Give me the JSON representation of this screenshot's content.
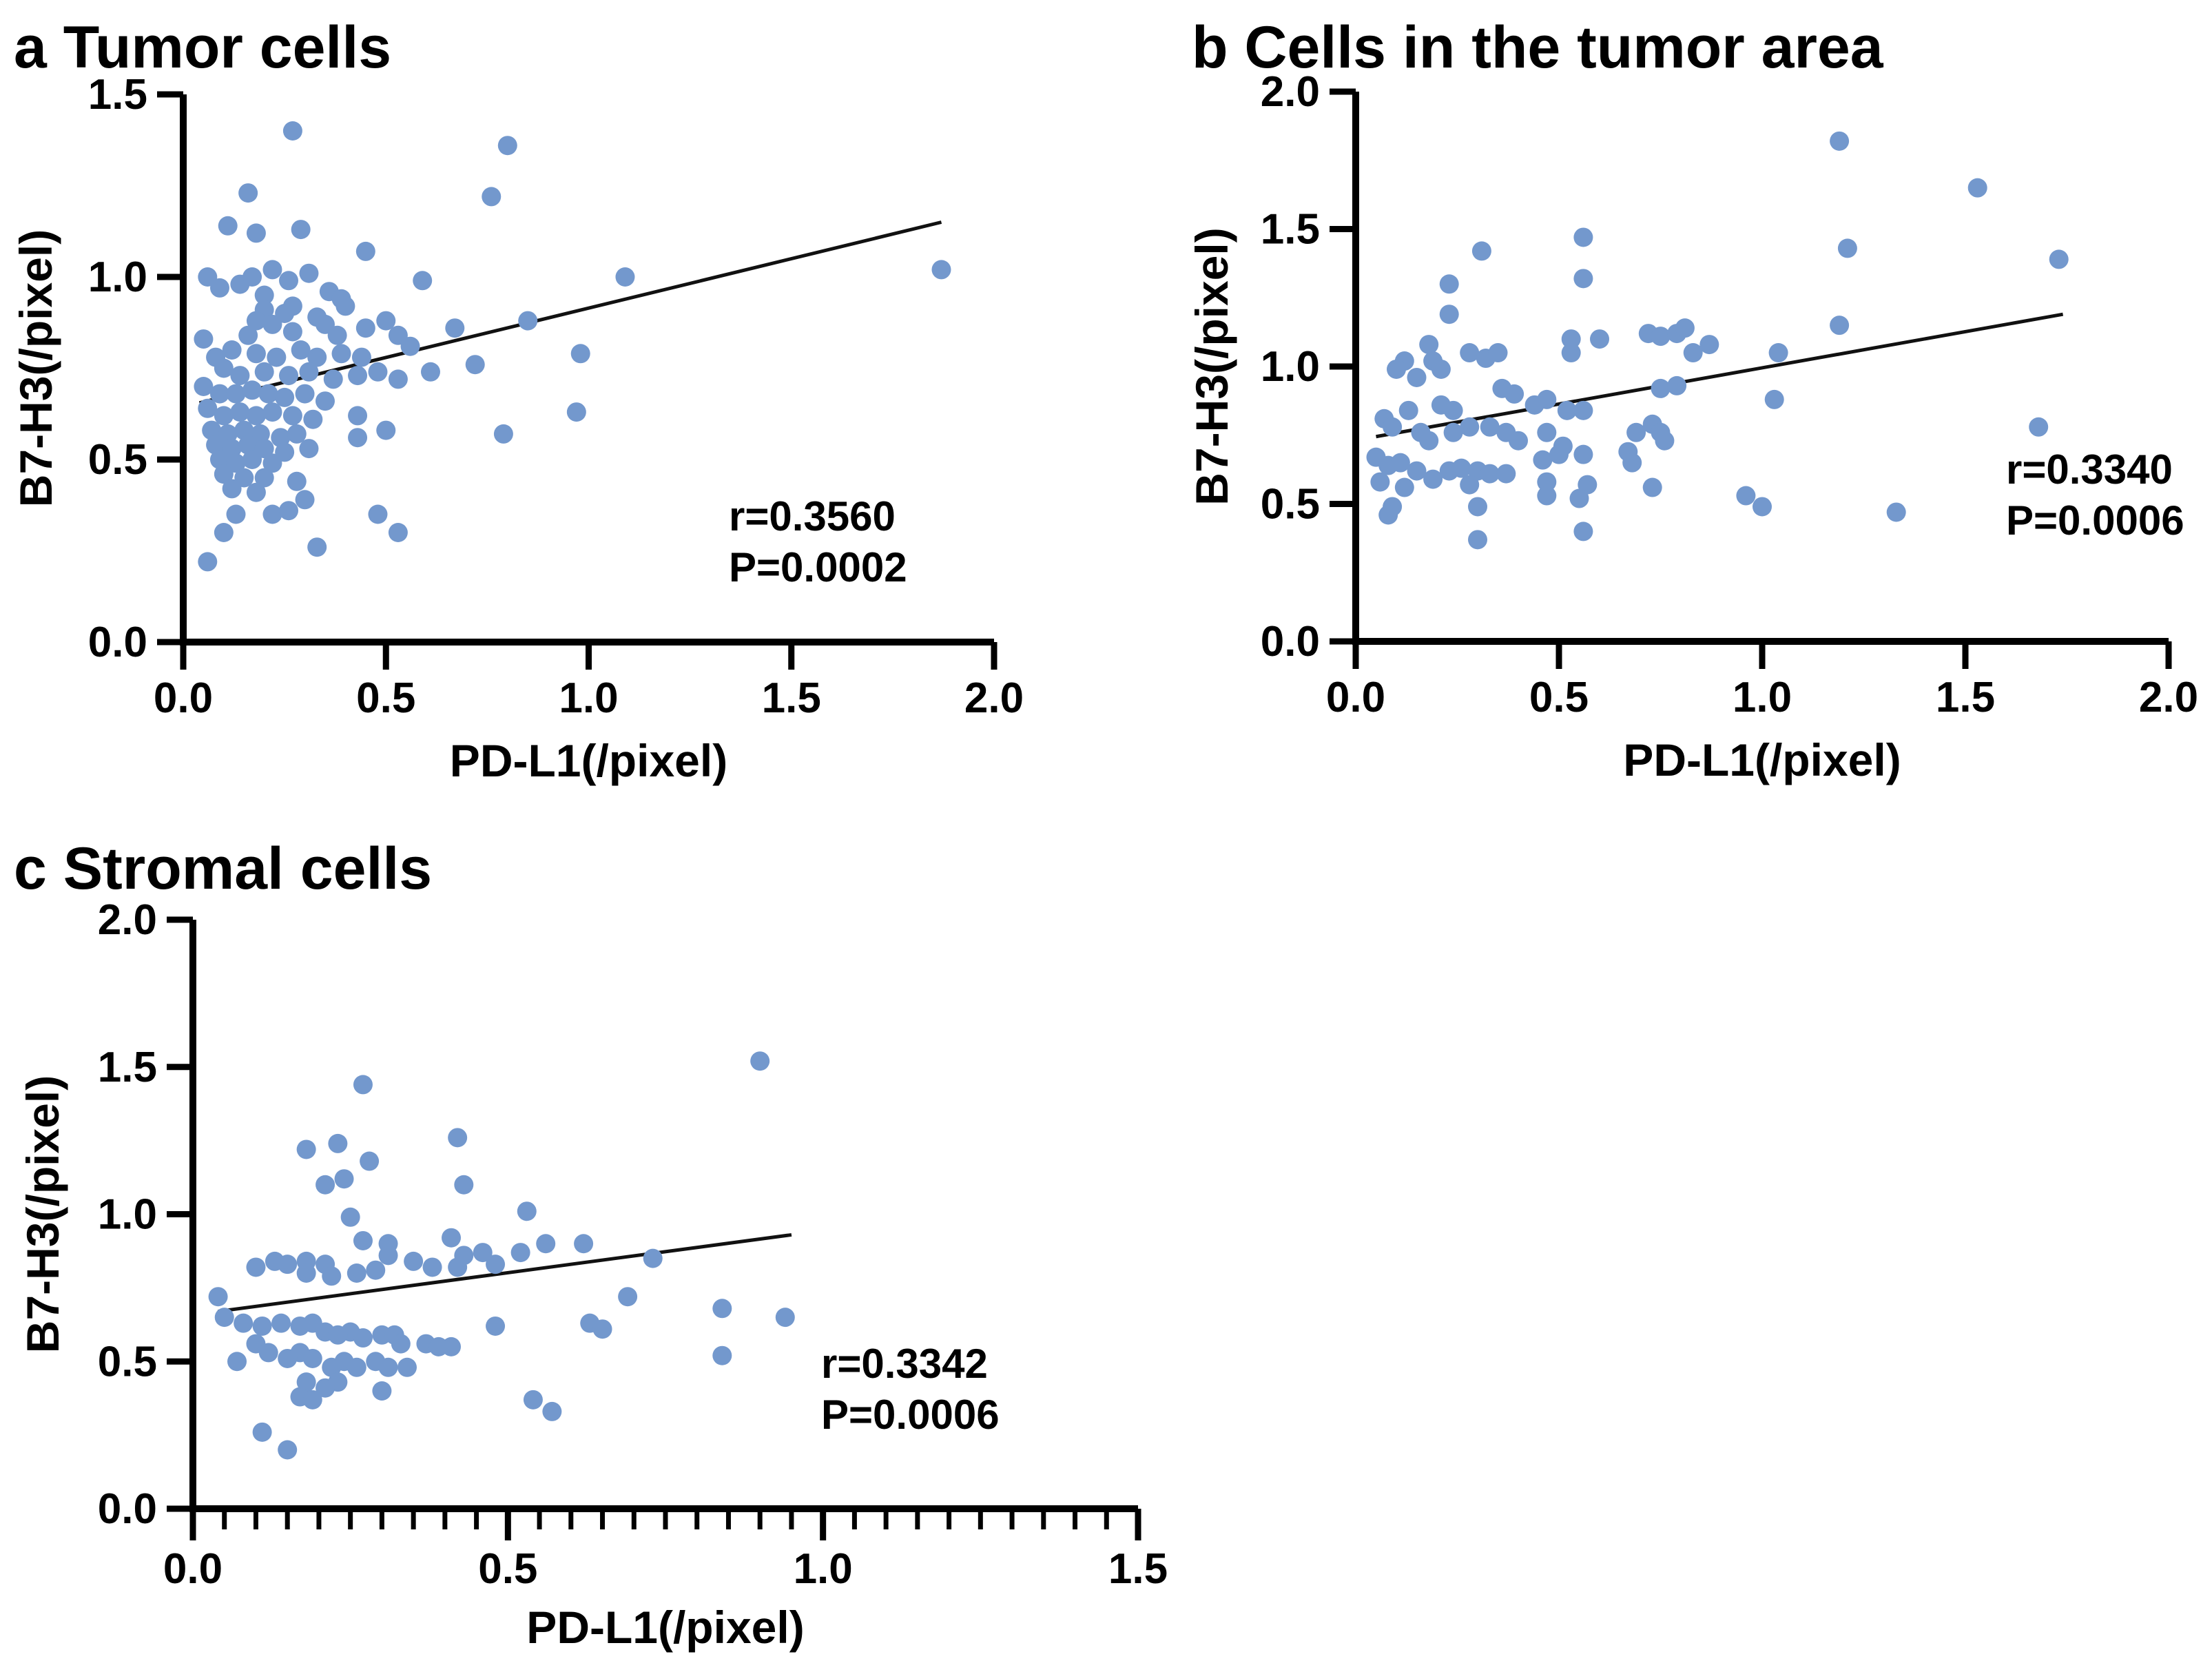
{
  "colors": {
    "point_fill": "#7398CD",
    "trend_line": "#111111",
    "axis": "#000000",
    "background": "#ffffff"
  },
  "chart_data": [
    {
      "id": "a",
      "type": "scatter",
      "title": "a Tumor cells",
      "xlabel": "PD-L1(/pixel)",
      "ylabel": "B7-H3(/pixel)",
      "annotation": {
        "r": "r=0.3560",
        "p": "P=0.0002"
      },
      "x_axis": {
        "min": 0,
        "max": 2.0,
        "ticks": [
          0,
          0.5,
          1.0,
          1.5,
          2.0
        ],
        "tick_labels": [
          "0.0",
          "0.5",
          "1.0",
          "1.5",
          "2.0"
        ]
      },
      "y_axis": {
        "min": 0,
        "max": 1.5,
        "ticks": [
          0,
          0.5,
          1.0,
          1.5
        ],
        "tick_labels": [
          "0.0",
          "0.5",
          "1.0",
          "1.5"
        ]
      },
      "trend": {
        "x1": 0.04,
        "y1": 0.655,
        "x2": 1.87,
        "y2": 1.15
      },
      "points": [
        [
          0.27,
          1.4
        ],
        [
          0.8,
          1.36
        ],
        [
          0.76,
          1.22
        ],
        [
          0.16,
          1.23
        ],
        [
          0.11,
          1.14
        ],
        [
          0.18,
          1.12
        ],
        [
          0.29,
          1.13
        ],
        [
          0.45,
          1.07
        ],
        [
          0.06,
          1.0
        ],
        [
          0.09,
          0.97
        ],
        [
          0.14,
          0.98
        ],
        [
          0.17,
          1.0
        ],
        [
          0.22,
          1.02
        ],
        [
          0.26,
          0.99
        ],
        [
          0.31,
          1.01
        ],
        [
          0.36,
          0.96
        ],
        [
          0.39,
          0.94
        ],
        [
          0.59,
          0.99
        ],
        [
          1.09,
          1.0
        ],
        [
          1.87,
          1.02
        ],
        [
          0.2,
          0.95
        ],
        [
          0.27,
          0.92
        ],
        [
          0.4,
          0.92
        ],
        [
          0.2,
          0.91
        ],
        [
          0.18,
          0.88
        ],
        [
          0.22,
          0.87
        ],
        [
          0.25,
          0.9
        ],
        [
          0.33,
          0.89
        ],
        [
          0.35,
          0.87
        ],
        [
          0.38,
          0.84
        ],
        [
          0.45,
          0.86
        ],
        [
          0.5,
          0.88
        ],
        [
          0.53,
          0.84
        ],
        [
          0.67,
          0.86
        ],
        [
          0.85,
          0.88
        ],
        [
          0.56,
          0.81
        ],
        [
          0.05,
          0.83
        ],
        [
          0.16,
          0.84
        ],
        [
          0.27,
          0.85
        ],
        [
          0.08,
          0.78
        ],
        [
          0.12,
          0.8
        ],
        [
          0.18,
          0.79
        ],
        [
          0.23,
          0.78
        ],
        [
          0.29,
          0.8
        ],
        [
          0.33,
          0.78
        ],
        [
          0.39,
          0.79
        ],
        [
          0.44,
          0.78
        ],
        [
          0.98,
          0.79
        ],
        [
          0.1,
          0.75
        ],
        [
          0.14,
          0.73
        ],
        [
          0.2,
          0.74
        ],
        [
          0.26,
          0.73
        ],
        [
          0.31,
          0.74
        ],
        [
          0.37,
          0.72
        ],
        [
          0.43,
          0.73
        ],
        [
          0.48,
          0.74
        ],
        [
          0.53,
          0.72
        ],
        [
          0.61,
          0.74
        ],
        [
          0.72,
          0.76
        ],
        [
          0.05,
          0.7
        ],
        [
          0.09,
          0.68
        ],
        [
          0.13,
          0.68
        ],
        [
          0.17,
          0.69
        ],
        [
          0.21,
          0.68
        ],
        [
          0.25,
          0.67
        ],
        [
          0.3,
          0.68
        ],
        [
          0.35,
          0.66
        ],
        [
          0.06,
          0.64
        ],
        [
          0.1,
          0.62
        ],
        [
          0.14,
          0.63
        ],
        [
          0.18,
          0.62
        ],
        [
          0.22,
          0.63
        ],
        [
          0.27,
          0.62
        ],
        [
          0.32,
          0.61
        ],
        [
          0.43,
          0.62
        ],
        [
          0.97,
          0.63
        ],
        [
          0.07,
          0.58
        ],
        [
          0.11,
          0.57
        ],
        [
          0.15,
          0.58
        ],
        [
          0.19,
          0.57
        ],
        [
          0.24,
          0.56
        ],
        [
          0.28,
          0.57
        ],
        [
          0.43,
          0.56
        ],
        [
          0.5,
          0.58
        ],
        [
          0.79,
          0.57
        ],
        [
          0.08,
          0.54
        ],
        [
          0.12,
          0.53
        ],
        [
          0.16,
          0.54
        ],
        [
          0.2,
          0.53
        ],
        [
          0.25,
          0.52
        ],
        [
          0.31,
          0.53
        ],
        [
          0.09,
          0.5
        ],
        [
          0.13,
          0.49
        ],
        [
          0.17,
          0.5
        ],
        [
          0.22,
          0.49
        ],
        [
          0.1,
          0.46
        ],
        [
          0.15,
          0.45
        ],
        [
          0.2,
          0.45
        ],
        [
          0.28,
          0.44
        ],
        [
          0.12,
          0.42
        ],
        [
          0.18,
          0.41
        ],
        [
          0.13,
          0.35
        ],
        [
          0.22,
          0.35
        ],
        [
          0.26,
          0.36
        ],
        [
          0.3,
          0.39
        ],
        [
          0.48,
          0.35
        ],
        [
          0.53,
          0.3
        ],
        [
          0.33,
          0.26
        ],
        [
          0.1,
          0.3
        ],
        [
          0.06,
          0.22
        ]
      ]
    },
    {
      "id": "b",
      "type": "scatter",
      "title": "b Cells in the tumor area",
      "xlabel": "PD-L1(/pixel)",
      "ylabel": "B7-H3(/pixel)",
      "annotation": {
        "r": "r=0.3340",
        "p": "P=0.0006"
      },
      "x_axis": {
        "min": 0,
        "max": 2.0,
        "ticks": [
          0,
          0.5,
          1.0,
          1.5,
          2.0
        ],
        "tick_labels": [
          "0.0",
          "0.5",
          "1.0",
          "1.5",
          "2.0"
        ]
      },
      "y_axis": {
        "min": 0,
        "max": 2.0,
        "ticks": [
          0,
          0.5,
          1.0,
          1.5,
          2.0
        ],
        "tick_labels": [
          "0.0",
          "0.5",
          "1.0",
          "1.5",
          "2.0"
        ]
      },
      "trend": {
        "x1": 0.05,
        "y1": 0.745,
        "x2": 1.74,
        "y2": 1.19
      },
      "points": [
        [
          1.19,
          1.82
        ],
        [
          1.53,
          1.65
        ],
        [
          1.21,
          1.43
        ],
        [
          1.73,
          1.39
        ],
        [
          0.56,
          1.47
        ],
        [
          0.31,
          1.42
        ],
        [
          0.56,
          1.32
        ],
        [
          0.23,
          1.3
        ],
        [
          0.23,
          1.19
        ],
        [
          1.19,
          1.15
        ],
        [
          0.18,
          1.08
        ],
        [
          0.12,
          1.02
        ],
        [
          0.19,
          1.02
        ],
        [
          0.28,
          1.05
        ],
        [
          0.32,
          1.03
        ],
        [
          0.35,
          1.05
        ],
        [
          0.53,
          1.1
        ],
        [
          0.6,
          1.1
        ],
        [
          0.53,
          1.05
        ],
        [
          0.72,
          1.12
        ],
        [
          0.75,
          1.11
        ],
        [
          0.79,
          1.12
        ],
        [
          0.81,
          1.14
        ],
        [
          0.87,
          1.08
        ],
        [
          0.83,
          1.05
        ],
        [
          1.04,
          1.05
        ],
        [
          0.1,
          0.99
        ],
        [
          0.15,
          0.96
        ],
        [
          0.21,
          0.99
        ],
        [
          0.75,
          0.92
        ],
        [
          0.79,
          0.93
        ],
        [
          1.03,
          0.88
        ],
        [
          0.36,
          0.92
        ],
        [
          0.39,
          0.9
        ],
        [
          0.44,
          0.86
        ],
        [
          0.47,
          0.88
        ],
        [
          0.52,
          0.84
        ],
        [
          0.56,
          0.84
        ],
        [
          0.21,
          0.86
        ],
        [
          0.24,
          0.84
        ],
        [
          0.13,
          0.84
        ],
        [
          0.07,
          0.81
        ],
        [
          0.09,
          0.78
        ],
        [
          0.16,
          0.76
        ],
        [
          0.18,
          0.73
        ],
        [
          0.24,
          0.76
        ],
        [
          0.28,
          0.78
        ],
        [
          0.33,
          0.78
        ],
        [
          0.37,
          0.76
        ],
        [
          0.4,
          0.73
        ],
        [
          0.47,
          0.76
        ],
        [
          0.51,
          0.71
        ],
        [
          0.69,
          0.76
        ],
        [
          0.73,
          0.79
        ],
        [
          0.75,
          0.76
        ],
        [
          0.76,
          0.73
        ],
        [
          1.68,
          0.78
        ],
        [
          0.05,
          0.67
        ],
        [
          0.08,
          0.64
        ],
        [
          0.11,
          0.65
        ],
        [
          0.15,
          0.62
        ],
        [
          0.19,
          0.59
        ],
        [
          0.23,
          0.62
        ],
        [
          0.26,
          0.63
        ],
        [
          0.3,
          0.62
        ],
        [
          0.33,
          0.61
        ],
        [
          0.37,
          0.61
        ],
        [
          0.46,
          0.66
        ],
        [
          0.5,
          0.68
        ],
        [
          0.56,
          0.68
        ],
        [
          0.67,
          0.69
        ],
        [
          0.68,
          0.65
        ],
        [
          0.28,
          0.57
        ],
        [
          0.12,
          0.56
        ],
        [
          0.47,
          0.58
        ],
        [
          0.57,
          0.57
        ],
        [
          0.73,
          0.56
        ],
        [
          0.06,
          0.58
        ],
        [
          0.47,
          0.53
        ],
        [
          0.55,
          0.52
        ],
        [
          0.96,
          0.53
        ],
        [
          1.0,
          0.49
        ],
        [
          0.09,
          0.49
        ],
        [
          0.3,
          0.49
        ],
        [
          0.08,
          0.46
        ],
        [
          1.33,
          0.47
        ],
        [
          0.56,
          0.4
        ],
        [
          0.3,
          0.37
        ]
      ]
    },
    {
      "id": "c",
      "type": "scatter",
      "title": "c Stromal cells",
      "xlabel": "PD-L1(/pixel)",
      "ylabel": "B7-H3(/pixel)",
      "annotation": {
        "r": "r=0.3342",
        "p": "P=0.0006"
      },
      "x_axis": {
        "min": 0,
        "max": 1.5,
        "ticks": [
          0,
          0.5,
          1.0,
          1.5
        ],
        "tick_labels": [
          "0.0",
          "0.5",
          "1.0",
          "1.5"
        ],
        "minor_step": 0.05
      },
      "y_axis": {
        "min": 0,
        "max": 2.0,
        "ticks": [
          0,
          0.5,
          1.0,
          1.5,
          2.0
        ],
        "tick_labels": [
          "0.0",
          "0.5",
          "1.0",
          "1.5",
          "2.0"
        ]
      },
      "trend": {
        "x1": 0.04,
        "y1": 0.67,
        "x2": 0.95,
        "y2": 0.93
      },
      "points": [
        [
          0.27,
          1.44
        ],
        [
          0.9,
          1.52
        ],
        [
          0.42,
          1.26
        ],
        [
          0.23,
          1.24
        ],
        [
          0.18,
          1.22
        ],
        [
          0.28,
          1.18
        ],
        [
          0.24,
          1.12
        ],
        [
          0.21,
          1.1
        ],
        [
          0.43,
          1.1
        ],
        [
          0.53,
          1.01
        ],
        [
          0.25,
          0.99
        ],
        [
          0.27,
          0.91
        ],
        [
          0.31,
          0.9
        ],
        [
          0.41,
          0.92
        ],
        [
          0.62,
          0.9
        ],
        [
          0.56,
          0.9
        ],
        [
          0.43,
          0.86
        ],
        [
          0.31,
          0.86
        ],
        [
          0.52,
          0.87
        ],
        [
          0.46,
          0.87
        ],
        [
          0.35,
          0.84
        ],
        [
          0.18,
          0.84
        ],
        [
          0.13,
          0.84
        ],
        [
          0.21,
          0.83
        ],
        [
          0.15,
          0.83
        ],
        [
          0.1,
          0.82
        ],
        [
          0.38,
          0.82
        ],
        [
          0.42,
          0.82
        ],
        [
          0.48,
          0.83
        ],
        [
          0.29,
          0.81
        ],
        [
          0.18,
          0.8
        ],
        [
          0.26,
          0.8
        ],
        [
          0.22,
          0.79
        ],
        [
          0.73,
          0.85
        ],
        [
          0.84,
          0.68
        ],
        [
          0.04,
          0.72
        ],
        [
          0.69,
          0.72
        ],
        [
          0.05,
          0.65
        ],
        [
          0.08,
          0.63
        ],
        [
          0.14,
          0.63
        ],
        [
          0.19,
          0.63
        ],
        [
          0.63,
          0.63
        ],
        [
          0.11,
          0.62
        ],
        [
          0.17,
          0.62
        ],
        [
          0.65,
          0.61
        ],
        [
          0.48,
          0.62
        ],
        [
          0.21,
          0.6
        ],
        [
          0.25,
          0.6
        ],
        [
          0.23,
          0.59
        ],
        [
          0.3,
          0.59
        ],
        [
          0.32,
          0.59
        ],
        [
          0.27,
          0.58
        ],
        [
          0.94,
          0.65
        ],
        [
          0.33,
          0.56
        ],
        [
          0.37,
          0.56
        ],
        [
          0.1,
          0.56
        ],
        [
          0.39,
          0.55
        ],
        [
          0.41,
          0.55
        ],
        [
          0.12,
          0.53
        ],
        [
          0.17,
          0.53
        ],
        [
          0.15,
          0.51
        ],
        [
          0.19,
          0.51
        ],
        [
          0.07,
          0.5
        ],
        [
          0.24,
          0.5
        ],
        [
          0.26,
          0.48
        ],
        [
          0.29,
          0.5
        ],
        [
          0.22,
          0.48
        ],
        [
          0.31,
          0.48
        ],
        [
          0.34,
          0.48
        ],
        [
          0.84,
          0.52
        ],
        [
          0.18,
          0.43
        ],
        [
          0.23,
          0.43
        ],
        [
          0.21,
          0.41
        ],
        [
          0.3,
          0.4
        ],
        [
          0.17,
          0.38
        ],
        [
          0.19,
          0.37
        ],
        [
          0.54,
          0.37
        ],
        [
          0.57,
          0.33
        ],
        [
          0.11,
          0.26
        ],
        [
          0.15,
          0.2
        ]
      ]
    }
  ]
}
